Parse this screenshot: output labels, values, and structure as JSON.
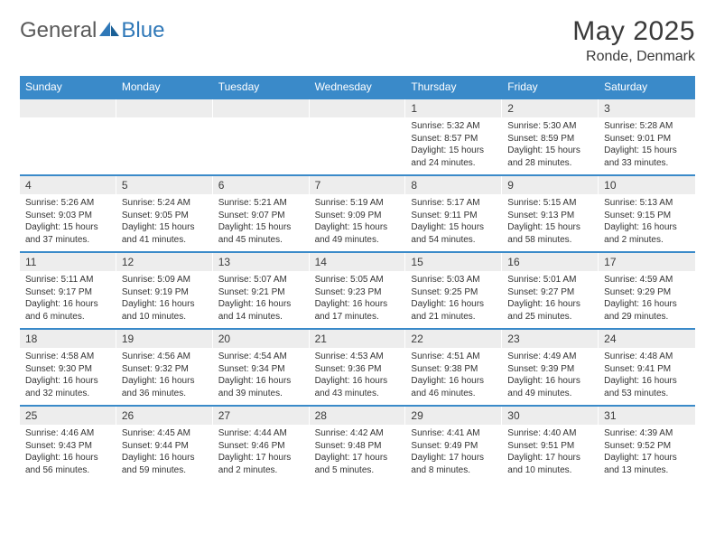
{
  "logo": {
    "text1": "General",
    "text2": "Blue"
  },
  "title": "May 2025",
  "location": "Ronde, Denmark",
  "colors": {
    "header_bg": "#3a8ac9",
    "header_text": "#ffffff",
    "daynum_bg": "#ededed",
    "rule": "#3a8ac9",
    "text": "#333333",
    "logo_gray": "#5a5a5a",
    "logo_blue": "#2f78b8"
  },
  "weekdays": [
    "Sunday",
    "Monday",
    "Tuesday",
    "Wednesday",
    "Thursday",
    "Friday",
    "Saturday"
  ],
  "weeks": [
    {
      "nums": [
        "",
        "",
        "",
        "",
        "1",
        "2",
        "3"
      ],
      "cells": [
        {
          "sunrise": "",
          "sunset": "",
          "daylight": ""
        },
        {
          "sunrise": "",
          "sunset": "",
          "daylight": ""
        },
        {
          "sunrise": "",
          "sunset": "",
          "daylight": ""
        },
        {
          "sunrise": "",
          "sunset": "",
          "daylight": ""
        },
        {
          "sunrise": "Sunrise: 5:32 AM",
          "sunset": "Sunset: 8:57 PM",
          "daylight": "Daylight: 15 hours and 24 minutes."
        },
        {
          "sunrise": "Sunrise: 5:30 AM",
          "sunset": "Sunset: 8:59 PM",
          "daylight": "Daylight: 15 hours and 28 minutes."
        },
        {
          "sunrise": "Sunrise: 5:28 AM",
          "sunset": "Sunset: 9:01 PM",
          "daylight": "Daylight: 15 hours and 33 minutes."
        }
      ]
    },
    {
      "nums": [
        "4",
        "5",
        "6",
        "7",
        "8",
        "9",
        "10"
      ],
      "cells": [
        {
          "sunrise": "Sunrise: 5:26 AM",
          "sunset": "Sunset: 9:03 PM",
          "daylight": "Daylight: 15 hours and 37 minutes."
        },
        {
          "sunrise": "Sunrise: 5:24 AM",
          "sunset": "Sunset: 9:05 PM",
          "daylight": "Daylight: 15 hours and 41 minutes."
        },
        {
          "sunrise": "Sunrise: 5:21 AM",
          "sunset": "Sunset: 9:07 PM",
          "daylight": "Daylight: 15 hours and 45 minutes."
        },
        {
          "sunrise": "Sunrise: 5:19 AM",
          "sunset": "Sunset: 9:09 PM",
          "daylight": "Daylight: 15 hours and 49 minutes."
        },
        {
          "sunrise": "Sunrise: 5:17 AM",
          "sunset": "Sunset: 9:11 PM",
          "daylight": "Daylight: 15 hours and 54 minutes."
        },
        {
          "sunrise": "Sunrise: 5:15 AM",
          "sunset": "Sunset: 9:13 PM",
          "daylight": "Daylight: 15 hours and 58 minutes."
        },
        {
          "sunrise": "Sunrise: 5:13 AM",
          "sunset": "Sunset: 9:15 PM",
          "daylight": "Daylight: 16 hours and 2 minutes."
        }
      ]
    },
    {
      "nums": [
        "11",
        "12",
        "13",
        "14",
        "15",
        "16",
        "17"
      ],
      "cells": [
        {
          "sunrise": "Sunrise: 5:11 AM",
          "sunset": "Sunset: 9:17 PM",
          "daylight": "Daylight: 16 hours and 6 minutes."
        },
        {
          "sunrise": "Sunrise: 5:09 AM",
          "sunset": "Sunset: 9:19 PM",
          "daylight": "Daylight: 16 hours and 10 minutes."
        },
        {
          "sunrise": "Sunrise: 5:07 AM",
          "sunset": "Sunset: 9:21 PM",
          "daylight": "Daylight: 16 hours and 14 minutes."
        },
        {
          "sunrise": "Sunrise: 5:05 AM",
          "sunset": "Sunset: 9:23 PM",
          "daylight": "Daylight: 16 hours and 17 minutes."
        },
        {
          "sunrise": "Sunrise: 5:03 AM",
          "sunset": "Sunset: 9:25 PM",
          "daylight": "Daylight: 16 hours and 21 minutes."
        },
        {
          "sunrise": "Sunrise: 5:01 AM",
          "sunset": "Sunset: 9:27 PM",
          "daylight": "Daylight: 16 hours and 25 minutes."
        },
        {
          "sunrise": "Sunrise: 4:59 AM",
          "sunset": "Sunset: 9:29 PM",
          "daylight": "Daylight: 16 hours and 29 minutes."
        }
      ]
    },
    {
      "nums": [
        "18",
        "19",
        "20",
        "21",
        "22",
        "23",
        "24"
      ],
      "cells": [
        {
          "sunrise": "Sunrise: 4:58 AM",
          "sunset": "Sunset: 9:30 PM",
          "daylight": "Daylight: 16 hours and 32 minutes."
        },
        {
          "sunrise": "Sunrise: 4:56 AM",
          "sunset": "Sunset: 9:32 PM",
          "daylight": "Daylight: 16 hours and 36 minutes."
        },
        {
          "sunrise": "Sunrise: 4:54 AM",
          "sunset": "Sunset: 9:34 PM",
          "daylight": "Daylight: 16 hours and 39 minutes."
        },
        {
          "sunrise": "Sunrise: 4:53 AM",
          "sunset": "Sunset: 9:36 PM",
          "daylight": "Daylight: 16 hours and 43 minutes."
        },
        {
          "sunrise": "Sunrise: 4:51 AM",
          "sunset": "Sunset: 9:38 PM",
          "daylight": "Daylight: 16 hours and 46 minutes."
        },
        {
          "sunrise": "Sunrise: 4:49 AM",
          "sunset": "Sunset: 9:39 PM",
          "daylight": "Daylight: 16 hours and 49 minutes."
        },
        {
          "sunrise": "Sunrise: 4:48 AM",
          "sunset": "Sunset: 9:41 PM",
          "daylight": "Daylight: 16 hours and 53 minutes."
        }
      ]
    },
    {
      "nums": [
        "25",
        "26",
        "27",
        "28",
        "29",
        "30",
        "31"
      ],
      "cells": [
        {
          "sunrise": "Sunrise: 4:46 AM",
          "sunset": "Sunset: 9:43 PM",
          "daylight": "Daylight: 16 hours and 56 minutes."
        },
        {
          "sunrise": "Sunrise: 4:45 AM",
          "sunset": "Sunset: 9:44 PM",
          "daylight": "Daylight: 16 hours and 59 minutes."
        },
        {
          "sunrise": "Sunrise: 4:44 AM",
          "sunset": "Sunset: 9:46 PM",
          "daylight": "Daylight: 17 hours and 2 minutes."
        },
        {
          "sunrise": "Sunrise: 4:42 AM",
          "sunset": "Sunset: 9:48 PM",
          "daylight": "Daylight: 17 hours and 5 minutes."
        },
        {
          "sunrise": "Sunrise: 4:41 AM",
          "sunset": "Sunset: 9:49 PM",
          "daylight": "Daylight: 17 hours and 8 minutes."
        },
        {
          "sunrise": "Sunrise: 4:40 AM",
          "sunset": "Sunset: 9:51 PM",
          "daylight": "Daylight: 17 hours and 10 minutes."
        },
        {
          "sunrise": "Sunrise: 4:39 AM",
          "sunset": "Sunset: 9:52 PM",
          "daylight": "Daylight: 17 hours and 13 minutes."
        }
      ]
    }
  ]
}
